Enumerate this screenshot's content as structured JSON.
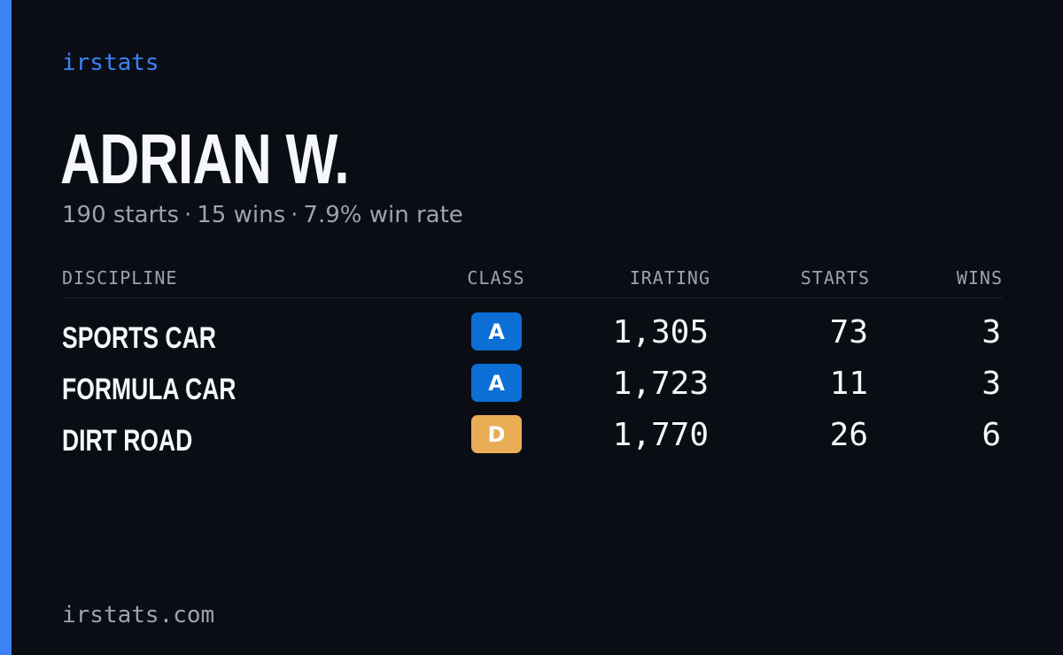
{
  "brand": "irstats",
  "driver": {
    "name": "ADRIAN W.",
    "starts": "190 starts",
    "wins": "15 wins",
    "win_rate": "7.9% win rate",
    "separator": "·"
  },
  "table": {
    "headers": {
      "discipline": "DISCIPLINE",
      "class": "CLASS",
      "irating": "IRATING",
      "starts": "STARTS",
      "wins": "WINS"
    },
    "rows": [
      {
        "discipline": "SPORTS CAR",
        "class": "A",
        "class_color": "#0b6fd6",
        "irating": "1,305",
        "starts": "73",
        "wins": "3"
      },
      {
        "discipline": "FORMULA CAR",
        "class": "A",
        "class_color": "#0b6fd6",
        "irating": "1,723",
        "starts": "11",
        "wins": "3"
      },
      {
        "discipline": "DIRT ROAD",
        "class": "D",
        "class_color": "#e9ad56",
        "irating": "1,770",
        "starts": "26",
        "wins": "6"
      }
    ]
  },
  "footer": "irstats.com",
  "colors": {
    "accent": "#3b82f6",
    "background": "#0a0d14",
    "muted_text": "#9aa3b2"
  }
}
